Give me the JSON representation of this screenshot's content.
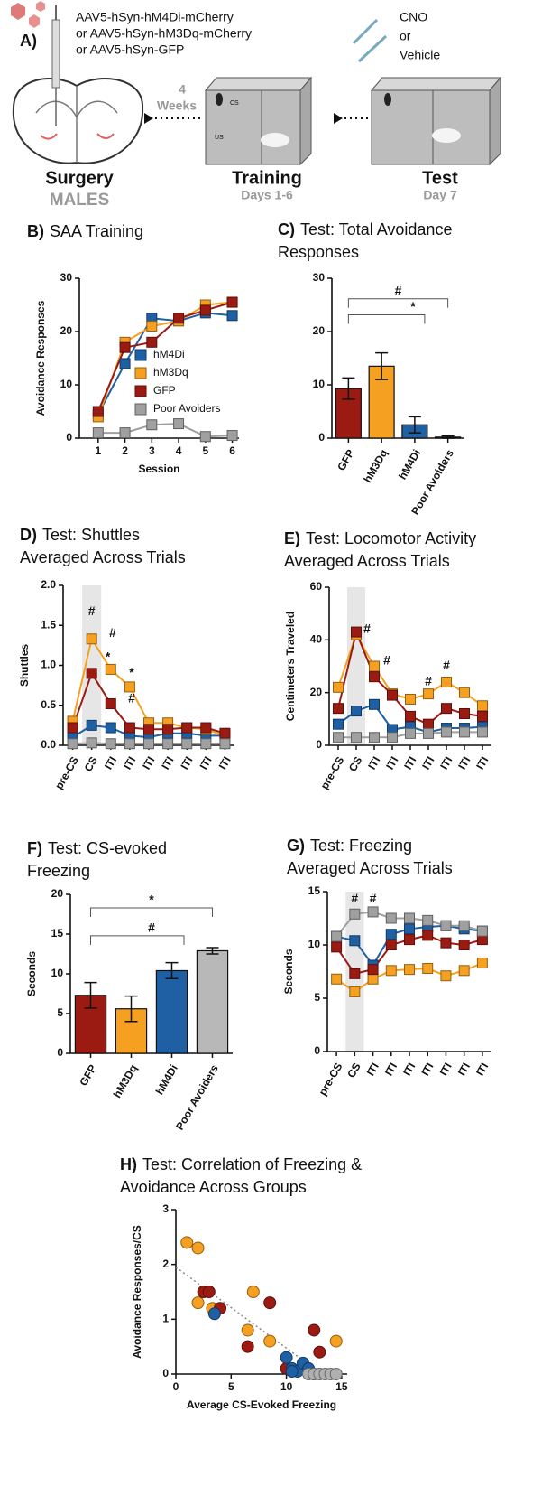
{
  "schematic": {
    "panel": "A)",
    "virus": [
      "AAV5-hSyn-hM4Di-mCherry",
      "or AAV5-hSyn-hM3Dq-mCherry",
      "or AAV5-hSyn-GFP"
    ],
    "drug": [
      "CNO",
      "or",
      "Vehicle"
    ],
    "delay": [
      "4",
      "Weeks"
    ],
    "stages": [
      {
        "title": "Surgery",
        "sub": "MALES"
      },
      {
        "title": "Training",
        "sub": "Days 1-6"
      },
      {
        "title": "Test",
        "sub": "Day 7"
      }
    ],
    "cs": "CS",
    "us": "US"
  },
  "chart_data": [
    {
      "type": "line",
      "panel": "B)",
      "title": [
        "SAA Training"
      ],
      "ylabel": "Avoidance Responses",
      "xlabel": "Session",
      "x": [
        1,
        2,
        3,
        4,
        5,
        6
      ],
      "xlim": [
        0.3,
        6.25
      ],
      "xticks": [
        1,
        2,
        3,
        4,
        5,
        6
      ],
      "ylim": [
        0,
        30
      ],
      "yticks": [
        0,
        10,
        20,
        30
      ],
      "legend": "right",
      "grid": false,
      "series": [
        {
          "name": "hM4Di",
          "color": "#1f5fa3",
          "values": [
            4.5,
            14,
            22.5,
            22,
            23.5,
            23
          ]
        },
        {
          "name": "hM3Dq",
          "color": "#f5a020",
          "values": [
            4,
            18,
            21,
            22,
            25,
            25.5
          ]
        },
        {
          "name": "GFP",
          "color": "#9b1a12",
          "values": [
            5,
            17,
            18,
            22.5,
            24,
            25.5
          ]
        },
        {
          "name": "Poor Avoiders",
          "color": "#a0a0a0",
          "values": [
            1,
            1,
            2.5,
            2.7,
            0.3,
            0.5
          ]
        }
      ]
    },
    {
      "type": "bar",
      "panel": "C)",
      "title": [
        "Test: Total Avoidance",
        "Responses"
      ],
      "categories": [
        "GFP",
        "hM3Dq",
        "hM4Di",
        "Poor Avoiders"
      ],
      "values": [
        9.3,
        13.5,
        2.5,
        0.2
      ],
      "errors": [
        2,
        2.5,
        1.5,
        0.2
      ],
      "colors": [
        "#9b1a12",
        "#f5a020",
        "#1f5fa3",
        "#b8b8b8"
      ],
      "ylim": [
        0,
        30
      ],
      "yticks": [
        0,
        10,
        20,
        30
      ],
      "grid": false,
      "annotations": [
        {
          "text": "#",
          "x": 1.5,
          "y": 27.5
        },
        {
          "text": "*",
          "x": 1.95,
          "y": 24.5
        }
      ]
    },
    {
      "type": "line",
      "panel": "D)",
      "title": [
        "Test: Shuttles",
        "Averaged Across Trials"
      ],
      "ylabel": "Shuttles",
      "categories": [
        "pre-CS",
        "CS",
        "ITI",
        "ITI",
        "ITI",
        "ITI",
        "ITI",
        "ITI",
        "ITI"
      ],
      "highlight_index": 1,
      "ylim": [
        0,
        2
      ],
      "yticks": [
        {
          "value": 0,
          "label": "0.0"
        },
        0.5,
        {
          "value": 1,
          "label": "1.0"
        },
        1.5,
        {
          "value": 2,
          "label": "2.0"
        }
      ],
      "legend": "none",
      "grid": false,
      "series": [
        {
          "name": "hM4Di",
          "color": "#1f5fa3",
          "values": [
            0.1,
            0.25,
            0.22,
            0.12,
            0.1,
            0.15,
            0.15,
            0.12,
            0.12
          ]
        },
        {
          "name": "hM3Dq",
          "color": "#f5a020",
          "values": [
            0.3,
            1.33,
            0.95,
            0.73,
            0.28,
            0.28,
            0.22,
            0.2,
            0.12
          ]
        },
        {
          "name": "GFP",
          "color": "#9b1a12",
          "values": [
            0.22,
            0.9,
            0.52,
            0.22,
            0.2,
            0.2,
            0.22,
            0.22,
            0.15
          ]
        },
        {
          "name": "Poor Avoiders",
          "color": "#a0a0a0",
          "values": [
            0.02,
            0.03,
            0.02,
            0.02,
            0.02,
            0.02,
            0.02,
            0.02,
            0.02
          ]
        }
      ],
      "annotations": [
        {
          "text": "#",
          "x": 1,
          "y": 1.67
        },
        {
          "text": "#",
          "x": 2.1,
          "y": 1.4
        },
        {
          "text": "*",
          "x": 1.85,
          "y": 1.1
        },
        {
          "text": "*",
          "x": 3.1,
          "y": 0.9
        },
        {
          "text": "#",
          "x": 3.1,
          "y": 0.58
        }
      ]
    },
    {
      "type": "line",
      "panel": "E)",
      "title": [
        "Test: Locomotor Activity",
        "Averaged Across Trials"
      ],
      "ylabel": "Centimeters Traveled",
      "categories": [
        "pre-CS",
        "CS",
        "ITI",
        "ITI",
        "ITI",
        "ITI",
        "ITI",
        "ITI",
        "ITI"
      ],
      "highlight_index": 1,
      "ylim": [
        0,
        60
      ],
      "yticks": [
        0,
        20,
        40,
        60
      ],
      "legend": "none",
      "grid": false,
      "series": [
        {
          "name": "hM4Di",
          "color": "#1f5fa3",
          "values": [
            8,
            13,
            15.5,
            6,
            7,
            5,
            6.5,
            6.5,
            7
          ]
        },
        {
          "name": "hM3Dq",
          "color": "#f5a020",
          "values": [
            22,
            42,
            30,
            19.5,
            17.5,
            19.5,
            24,
            20,
            15
          ]
        },
        {
          "name": "GFP",
          "color": "#9b1a12",
          "values": [
            14,
            43,
            26,
            19,
            11,
            8,
            14,
            12,
            11
          ]
        },
        {
          "name": "Poor Avoiders",
          "color": "#a0a0a0",
          "values": [
            3,
            3,
            3,
            3,
            4.5,
            4.5,
            5,
            5,
            5
          ]
        }
      ],
      "annotations": [
        {
          "text": "#",
          "x": 1.6,
          "y": 44
        },
        {
          "text": "#",
          "x": 2.7,
          "y": 32
        },
        {
          "text": "#",
          "x": 5,
          "y": 24
        },
        {
          "text": "#",
          "x": 6,
          "y": 30
        }
      ]
    },
    {
      "type": "bar",
      "panel": "F)",
      "title": [
        "Test: CS-evoked",
        "Freezing"
      ],
      "ylabel": "Seconds",
      "categories": [
        "GFP",
        "hM3Dq",
        "hM4Di",
        "Poor Avoiders"
      ],
      "values": [
        7.3,
        5.6,
        10.4,
        12.9
      ],
      "errors": [
        1.6,
        1.6,
        1,
        0.4
      ],
      "colors": [
        "#9b1a12",
        "#f5a020",
        "#1f5fa3",
        "#b8b8b8"
      ],
      "ylim": [
        0,
        20
      ],
      "yticks": [
        0,
        5,
        10,
        15,
        20
      ],
      "grid": false,
      "annotations": [
        {
          "text": "*",
          "x": 1.5,
          "y": 19.2
        },
        {
          "text": "#",
          "x": 1.5,
          "y": 15.7
        }
      ]
    },
    {
      "type": "line",
      "panel": "G)",
      "title": [
        "Test: Freezing",
        "Averaged Across Trials"
      ],
      "ylabel": "Seconds",
      "categories": [
        "pre-CS",
        "CS",
        "ITI",
        "ITI",
        "ITI",
        "ITI",
        "ITI",
        "ITI",
        "ITI"
      ],
      "highlight_index": 1,
      "ylim": [
        0,
        15
      ],
      "yticks": [
        0,
        5,
        10,
        15
      ],
      "legend": "none",
      "grid": false,
      "series": [
        {
          "name": "hM4Di",
          "color": "#1f5fa3",
          "values": [
            10.8,
            10.4,
            8.1,
            11,
            11.5,
            11.7,
            11.8,
            11.5,
            11.3
          ]
        },
        {
          "name": "hM3Dq",
          "color": "#f5a020",
          "values": [
            6.8,
            5.6,
            6.8,
            7.6,
            7.7,
            7.8,
            7.1,
            7.6,
            8.3
          ]
        },
        {
          "name": "GFP",
          "color": "#9b1a12",
          "values": [
            9.8,
            7.3,
            7.7,
            10,
            10.5,
            10.9,
            10.2,
            10,
            10.5
          ]
        },
        {
          "name": "Poor Avoiders",
          "color": "#a0a0a0",
          "values": [
            10.8,
            12.9,
            13.1,
            12.5,
            12.5,
            12.3,
            11.8,
            11.8,
            11.3
          ]
        }
      ],
      "annotations": [
        {
          "text": "#",
          "x": 1,
          "y": 14.3
        },
        {
          "text": "#",
          "x": 2,
          "y": 14.3
        }
      ]
    },
    {
      "type": "scatter",
      "panel": "H)",
      "title": [
        "Test: Correlation of Freezing &",
        "Avoidance Across Groups"
      ],
      "ylabel": "Avoidance Responses/CS",
      "xlabel": "Average CS-Evoked Freezing",
      "xlim": [
        0,
        15.5
      ],
      "xticks": [
        0,
        5,
        10,
        15
      ],
      "ylim": [
        0,
        3
      ],
      "yticks": [
        0,
        1,
        2,
        3
      ],
      "legend": "none",
      "grid": false,
      "trendline": {
        "x": [
          0,
          13.2
        ],
        "values": [
          1.95,
          0
        ]
      },
      "series": [
        {
          "name": "hM3Dq",
          "color": "#f5a020",
          "x": [
            1,
            2,
            2,
            3.3,
            7,
            6.5,
            8.5,
            14.5
          ],
          "values": [
            2.4,
            2.3,
            1.3,
            1.2,
            1.5,
            0.8,
            0.6,
            0.6
          ]
        },
        {
          "name": "GFP",
          "color": "#9b1a12",
          "x": [
            2.5,
            3,
            4,
            8.5,
            12.5,
            13,
            6.5,
            10
          ],
          "values": [
            1.5,
            1.5,
            1.2,
            1.3,
            0.8,
            0.4,
            0.5,
            0.1
          ]
        },
        {
          "name": "hM4Di",
          "color": "#1f5fa3",
          "x": [
            3.5,
            10,
            10.5,
            11,
            11.5,
            12,
            12.5,
            10.5
          ],
          "values": [
            1.1,
            0.3,
            0.1,
            0.05,
            0.2,
            0.1,
            0,
            0.05
          ]
        },
        {
          "name": "Poor Avoiders",
          "color": "#b0b0b0",
          "x": [
            12,
            12.5,
            13,
            13.5,
            14,
            14.5
          ],
          "values": [
            0,
            0,
            0,
            0,
            0,
            0
          ]
        }
      ]
    }
  ]
}
